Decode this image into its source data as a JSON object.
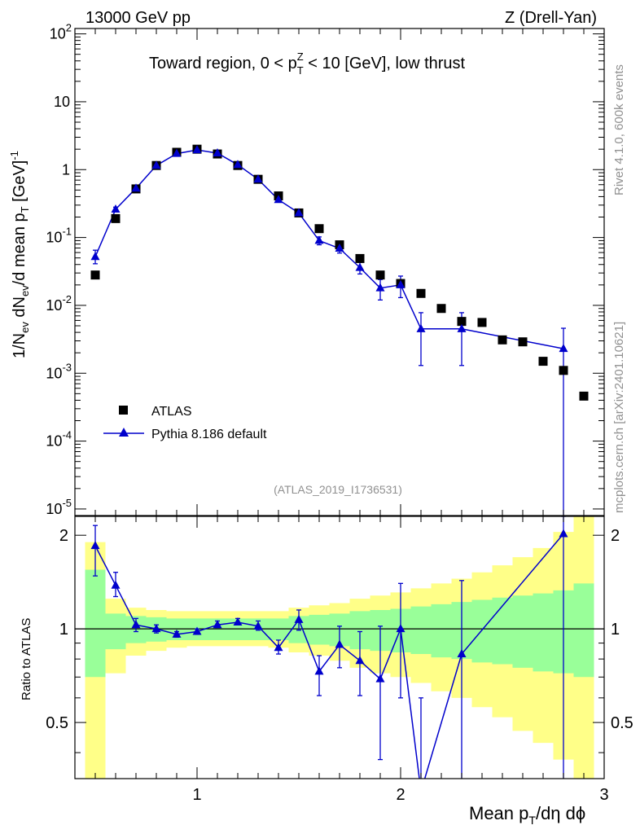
{
  "header": {
    "energy": "13000 GeV pp",
    "process": "Z (Drell-Yan)",
    "rivet": "Rivet 4.1.0,  600k events",
    "mcplots": "mcplots.cern.ch [arXiv:2401.10621]",
    "analysis": "(ATLAS_2019_I1736531)"
  },
  "chart_data": [
    {
      "type": "scatter",
      "name": "main",
      "title": "Toward region, 0 < p_T^Z < 10 [GeV], low thrust",
      "ylabel": "1/N_ev dN_ev/d mean p_T [GeV]^-1",
      "yscale": "log",
      "ylim": [
        8e-06,
        120
      ],
      "xlim": [
        0.4,
        3.0
      ],
      "ytick_labels": [
        "10^-5",
        "10^-4",
        "10^-3",
        "10^-2",
        "10^-1",
        "1",
        "10",
        "10^2"
      ],
      "legend": {
        "placement": "lower-left",
        "entries": [
          "ATLAS",
          "Pythia 8.186 default"
        ]
      },
      "series": [
        {
          "name": "ATLAS",
          "x": [
            0.5,
            0.6,
            0.7,
            0.8,
            0.9,
            1.0,
            1.1,
            1.2,
            1.3,
            1.4,
            1.5,
            1.6,
            1.7,
            1.8,
            1.9,
            2.0,
            2.1,
            2.2,
            2.3,
            2.4,
            2.5,
            2.6,
            2.7,
            2.8,
            2.9
          ],
          "y": [
            0.028,
            0.19,
            0.52,
            1.15,
            1.8,
            2.0,
            1.7,
            1.15,
            0.72,
            0.41,
            0.23,
            0.135,
            0.078,
            0.049,
            0.028,
            0.021,
            0.015,
            0.009,
            0.0058,
            0.0056,
            0.0031,
            0.0029,
            0.0015,
            0.0011,
            0.00046
          ]
        },
        {
          "name": "Pythia 8.186 default",
          "x": [
            0.5,
            0.6,
            0.7,
            0.8,
            0.9,
            1.0,
            1.1,
            1.2,
            1.3,
            1.4,
            1.5,
            1.6,
            1.7,
            1.8,
            1.9,
            2.0,
            2.1,
            2.3,
            2.8
          ],
          "y": [
            0.052,
            0.26,
            0.53,
            1.15,
            1.72,
            1.95,
            1.75,
            1.18,
            0.72,
            0.36,
            0.23,
            0.09,
            0.069,
            0.036,
            0.018,
            0.02,
            0.0045,
            0.0045,
            0.0023
          ],
          "yerr_low": [
            0.041,
            0.24,
            0.51,
            1.12,
            1.68,
            1.92,
            1.72,
            1.15,
            0.7,
            0.34,
            0.215,
            0.078,
            0.059,
            0.029,
            0.012,
            0.013,
            0.0013,
            0.0013,
            1e-06
          ],
          "yerr_high": [
            0.065,
            0.28,
            0.55,
            1.18,
            1.76,
            1.98,
            1.78,
            1.21,
            0.74,
            0.38,
            0.245,
            0.102,
            0.08,
            0.043,
            0.024,
            0.027,
            0.0078,
            0.0078,
            0.0046
          ]
        }
      ]
    },
    {
      "type": "line",
      "name": "ratio",
      "ylabel": "Ratio to ATLAS",
      "xlabel": "Mean p_T/dη dφ",
      "ylim": [
        0.33,
        2.3
      ],
      "xlim": [
        0.4,
        3.0
      ],
      "xtick_labels": [
        "1",
        "2",
        "3"
      ],
      "ytick_labels": [
        "0.5",
        "1",
        "2"
      ],
      "bands": {
        "x_edges": [
          0.45,
          0.55,
          0.65,
          0.75,
          0.85,
          0.95,
          1.05,
          1.15,
          1.25,
          1.35,
          1.45,
          1.55,
          1.65,
          1.75,
          1.85,
          1.95,
          2.05,
          2.15,
          2.25,
          2.35,
          2.45,
          2.55,
          2.65,
          2.75,
          2.85,
          2.95
        ],
        "green_low": [
          0.7,
          0.86,
          0.9,
          0.91,
          0.92,
          0.92,
          0.92,
          0.92,
          0.92,
          0.92,
          0.9,
          0.89,
          0.88,
          0.86,
          0.85,
          0.84,
          0.83,
          0.81,
          0.8,
          0.78,
          0.77,
          0.75,
          0.73,
          0.72,
          0.7
        ],
        "green_high": [
          1.55,
          1.12,
          1.1,
          1.09,
          1.08,
          1.08,
          1.08,
          1.08,
          1.08,
          1.08,
          1.1,
          1.11,
          1.12,
          1.14,
          1.15,
          1.16,
          1.18,
          1.2,
          1.22,
          1.24,
          1.26,
          1.28,
          1.3,
          1.33,
          1.4
        ],
        "yellow_low": [
          0.33,
          0.72,
          0.82,
          0.85,
          0.87,
          0.88,
          0.88,
          0.88,
          0.88,
          0.87,
          0.84,
          0.82,
          0.79,
          0.75,
          0.72,
          0.7,
          0.67,
          0.63,
          0.6,
          0.56,
          0.52,
          0.47,
          0.43,
          0.38,
          0.33
        ],
        "yellow_high": [
          1.9,
          1.25,
          1.17,
          1.15,
          1.14,
          1.14,
          1.14,
          1.14,
          1.14,
          1.14,
          1.17,
          1.19,
          1.21,
          1.25,
          1.28,
          1.31,
          1.35,
          1.4,
          1.45,
          1.52,
          1.6,
          1.7,
          1.82,
          2.05,
          2.3
        ]
      },
      "series": [
        {
          "name": "Pythia 8.186 default",
          "x": [
            0.5,
            0.6,
            0.7,
            0.8,
            0.9,
            1.0,
            1.1,
            1.2,
            1.3,
            1.4,
            1.5,
            1.6,
            1.7,
            1.8,
            1.9,
            2.0,
            2.1,
            2.3,
            2.8
          ],
          "y": [
            1.85,
            1.38,
            1.03,
            1.0,
            0.96,
            0.98,
            1.03,
            1.05,
            1.02,
            0.87,
            1.07,
            0.73,
            0.89,
            0.79,
            0.69,
            1.0,
            0.3,
            0.83,
            2.02
          ],
          "yerr_low": [
            1.48,
            1.27,
            0.98,
            0.97,
            0.94,
            0.96,
            1.01,
            1.03,
            0.99,
            0.83,
            0.99,
            0.61,
            0.75,
            0.61,
            0.38,
            0.6,
            0.0,
            0.2,
            0.0
          ],
          "yerr_high": [
            2.15,
            1.52,
            1.08,
            1.03,
            0.98,
            1.0,
            1.06,
            1.08,
            1.06,
            0.92,
            1.15,
            0.82,
            1.02,
            0.98,
            1.02,
            1.4,
            0.6,
            1.43,
            2.3
          ]
        }
      ],
      "reference_line": 1.0
    }
  ],
  "colors": {
    "atlas": "#000000",
    "pythia": "#0000cc",
    "green_band": "#99ff99",
    "yellow_band": "#ffff88"
  }
}
